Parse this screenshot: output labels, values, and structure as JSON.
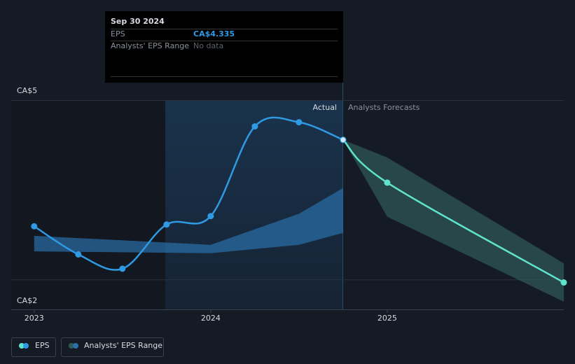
{
  "chart_data": {
    "type": "line",
    "xlim": [
      2022.87,
      2026
    ],
    "ylim": [
      1.5,
      5
    ],
    "xticks": [
      2023,
      2024,
      2025
    ],
    "yticks": [
      {
        "value": 5,
        "label": "CA$5"
      },
      {
        "value": 2,
        "label": "CA$2"
      }
    ],
    "grid": true,
    "series": [
      {
        "name": "EPS",
        "color": "#2f9ae3",
        "x": [
          2023,
          2023.25,
          2023.5,
          2023.75,
          2024,
          2024.25,
          2024.5,
          2024.75
        ],
        "values": [
          2.89,
          2.42,
          2.18,
          2.92,
          3.06,
          4.56,
          4.63,
          4.335
        ],
        "forecast": {
          "color": "#5fe3cc",
          "x": [
            2024.75,
            2025,
            2026
          ],
          "values": [
            4.335,
            3.62,
            1.95
          ]
        }
      }
    ],
    "range": {
      "name": "Analysts' EPS Range",
      "past": {
        "color": "#2a6fa8",
        "x": [
          2023,
          2024,
          2024.5,
          2024.75
        ],
        "low": [
          2.47,
          2.44,
          2.58,
          2.78
        ],
        "high": [
          2.73,
          2.58,
          3.1,
          3.53
        ]
      },
      "forecast": {
        "color": "#2f5a58",
        "x": [
          2024.75,
          2025,
          2026
        ],
        "low": [
          4.335,
          3.05,
          1.63
        ],
        "high": [
          4.335,
          4.04,
          2.27
        ]
      }
    },
    "annotations": {
      "actual": "Actual",
      "forecast": "Analysts Forecasts"
    },
    "tooltip": {
      "date": "Sep 30 2024",
      "rows": [
        {
          "label": "EPS",
          "value": "CA$4.335"
        },
        {
          "label": "Analysts' EPS Range",
          "value": "No data"
        }
      ]
    }
  }
}
